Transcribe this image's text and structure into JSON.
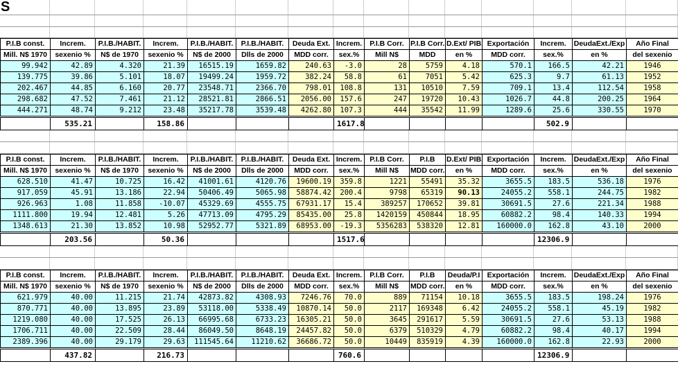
{
  "title": "S",
  "colors": {
    "cell_cyan": "#CCFFFF",
    "cell_yellow": "#FFFFCC",
    "table_border": "#000000",
    "grid_line_h": "#999999",
    "grid_line_v": "#cccccc",
    "background": "#FFFFFF"
  },
  "column_bg": [
    "cyan",
    "cyan",
    "cyan",
    "cyan",
    "cyan",
    "cyan",
    "yellow",
    "yellow",
    "yellow",
    "yellow",
    "yellow",
    "cyan",
    "cyan",
    "cyan",
    "yellow"
  ],
  "tables": [
    {
      "headers": [
        [
          "P.I.B const.",
          "Mill. N$ 1970"
        ],
        [
          "Increm.",
          "sexenio %"
        ],
        [
          "P.I.B./HABIT.",
          "N$ de 1970"
        ],
        [
          "Increm.",
          "sexenio %"
        ],
        [
          "P.I.B./HABIT.",
          "N$ de 2000"
        ],
        [
          "P.I.B./HABIT.",
          "Dlls de 2000"
        ],
        [
          "Deuda Ext.",
          "MDD corr."
        ],
        [
          "Increm.",
          "sex.%"
        ],
        [
          "P.I.B Corr.",
          "Mill N$"
        ],
        [
          "P.I.B Corr.",
          "MDD"
        ],
        [
          "D.Ext/ PIB.",
          "en %"
        ],
        [
          "Exportación",
          "MDD corr."
        ],
        [
          "Increm.",
          "sex.%"
        ],
        [
          "DeudaExt./Exp",
          "en %"
        ],
        [
          "Año Final",
          "del sexenio"
        ]
      ],
      "rows": [
        [
          "99.942",
          "42.89",
          "4.320",
          "21.39",
          "16515.19",
          "1659.82",
          "240.63",
          "-3.0",
          "28",
          "5759",
          "4.18",
          "570.1",
          "166.5",
          "42.21",
          "1946"
        ],
        [
          "139.775",
          "39.86",
          "5.101",
          "18.07",
          "19499.24",
          "1959.72",
          "382.24",
          "58.8",
          "61",
          "7051",
          "5.42",
          "625.3",
          "9.7",
          "61.13",
          "1952"
        ],
        [
          "202.467",
          "44.85",
          "6.160",
          "20.77",
          "23548.71",
          "2366.70",
          "798.01",
          "108.8",
          "131",
          "10510",
          "7.59",
          "709.1",
          "13.4",
          "112.54",
          "1958"
        ],
        [
          "298.682",
          "47.52",
          "7.461",
          "21.12",
          "28521.81",
          "2866.51",
          "2056.00",
          "157.6",
          "247",
          "19720",
          "10.43",
          "1026.7",
          "44.8",
          "200.25",
          "1964"
        ],
        [
          "444.271",
          "48.74",
          "9.212",
          "23.48",
          "35217.78",
          "3539.48",
          "4262.80",
          "107.3",
          "444",
          "35542",
          "11.99",
          "1289.6",
          "25.6",
          "330.55",
          "1970"
        ]
      ],
      "totals": [
        "",
        "535.21",
        "",
        "158.86",
        "",
        "",
        "",
        "1617.8",
        "",
        "",
        "",
        "",
        "502.9",
        "",
        ""
      ],
      "bold_cells": []
    },
    {
      "headers": [
        [
          "P.I.B const.",
          "Mill. N$ 1970"
        ],
        [
          "Increm.",
          "sexenio %"
        ],
        [
          "P.I.B./HABIT.",
          "N$ de 1970"
        ],
        [
          "Increm.",
          "sexenio %"
        ],
        [
          "P.I.B./HABIT.",
          "N$ de 2000"
        ],
        [
          "P.I.B./HABIT.",
          "Dlls de 2000"
        ],
        [
          "Deuda Ext.",
          "MDD corr."
        ],
        [
          "Increm.",
          "sex.%"
        ],
        [
          "P.I.B Corr.",
          "Mill N$"
        ],
        [
          "P.I.B",
          "MDD corr."
        ],
        [
          "D.Ext/ PIB.",
          "en %"
        ],
        [
          "Exportación",
          "MDD corr."
        ],
        [
          "Increm.",
          "sex.%"
        ],
        [
          "DeudaExt./Exp",
          "en %"
        ],
        [
          "Año Final",
          "del sexenio"
        ]
      ],
      "rows": [
        [
          "628.510",
          "41.47",
          "10.725",
          "16.42",
          "41001.61",
          "4120.76",
          "19600.19",
          "359.8",
          "1221",
          "55491",
          "35.32",
          "3655.5",
          "183.5",
          "536.18",
          "1976"
        ],
        [
          "917.059",
          "45.91",
          "13.186",
          "22.94",
          "50406.49",
          "5065.98",
          "58874.42",
          "200.4",
          "9798",
          "65319",
          "90.13",
          "24055.2",
          "558.1",
          "244.75",
          "1982"
        ],
        [
          "926.963",
          "1.08",
          "11.858",
          "-10.07",
          "45329.69",
          "4555.75",
          "67931.17",
          "15.4",
          "389257",
          "170652",
          "39.81",
          "30691.5",
          "27.6",
          "221.34",
          "1988"
        ],
        [
          "1111.800",
          "19.94",
          "12.481",
          "5.26",
          "47713.09",
          "4795.29",
          "85435.00",
          "25.8",
          "1420159",
          "450844",
          "18.95",
          "60882.2",
          "98.4",
          "140.33",
          "1994"
        ],
        [
          "1348.613",
          "21.30",
          "13.852",
          "10.98",
          "52952.77",
          "5321.89",
          "68953.00",
          "-19.3",
          "5356283",
          "538320",
          "12.81",
          "160000.0",
          "162.8",
          "43.10",
          "2000"
        ]
      ],
      "totals": [
        "",
        "203.56",
        "",
        "50.36",
        "",
        "",
        "",
        "1517.6",
        "",
        "",
        "",
        "",
        "12306.9",
        "",
        ""
      ],
      "bold_cells": [
        [
          1,
          10
        ]
      ]
    },
    {
      "headers": [
        [
          "P.I.B const.",
          "Mill. N$ 1970"
        ],
        [
          "Increm.",
          "sexenio %"
        ],
        [
          "P.I.B./HABIT.",
          "N$ de 1970"
        ],
        [
          "Increm.",
          "sexenio %"
        ],
        [
          "P.I.B./HABIT.",
          "N$ de 2000"
        ],
        [
          "P.I.B./HABIT.",
          "Dlls de 2000"
        ],
        [
          "Deuda Ext.",
          "MDD corr."
        ],
        [
          "Increm.",
          "sex.%"
        ],
        [
          "P.I.B Corr.",
          "Mill N$"
        ],
        [
          "P.I.B",
          "MDD corr."
        ],
        [
          "Deuda/P.I",
          "en %"
        ],
        [
          "Exportación",
          "MDD corr."
        ],
        [
          "Increm.",
          "sex.%"
        ],
        [
          "DeudaExt./Exp",
          "en %"
        ],
        [
          "Año Final",
          "del sexenio"
        ]
      ],
      "rows": [
        [
          "621.979",
          "40.00",
          "11.215",
          "21.74",
          "42873.82",
          "4308.93",
          "7246.76",
          "70.0",
          "889",
          "71154",
          "10.18",
          "3655.5",
          "183.5",
          "198.24",
          "1976"
        ],
        [
          "870.771",
          "40.00",
          "13.895",
          "23.89",
          "53118.00",
          "5338.49",
          "10870.14",
          "50.0",
          "2117",
          "169348",
          "6.42",
          "24055.2",
          "558.1",
          "45.19",
          "1982"
        ],
        [
          "1219.080",
          "40.00",
          "17.525",
          "26.13",
          "66995.68",
          "6733.23",
          "16305.21",
          "50.0",
          "3645",
          "291617",
          "5.59",
          "30691.5",
          "27.6",
          "53.13",
          "1988"
        ],
        [
          "1706.711",
          "40.00",
          "22.509",
          "28.44",
          "86049.50",
          "8648.19",
          "24457.82",
          "50.0",
          "6379",
          "510329",
          "4.79",
          "60882.2",
          "98.4",
          "40.17",
          "1994"
        ],
        [
          "2389.396",
          "40.00",
          "29.179",
          "29.63",
          "111545.64",
          "11210.62",
          "36686.72",
          "50.0",
          "10449",
          "835919",
          "4.39",
          "160000.0",
          "162.8",
          "22.93",
          "2000"
        ]
      ],
      "totals": [
        "",
        "437.82",
        "",
        "216.73",
        "",
        "",
        "",
        "760.6",
        "",
        "",
        "",
        "",
        "12306.9",
        "",
        ""
      ],
      "bold_cells": []
    }
  ]
}
